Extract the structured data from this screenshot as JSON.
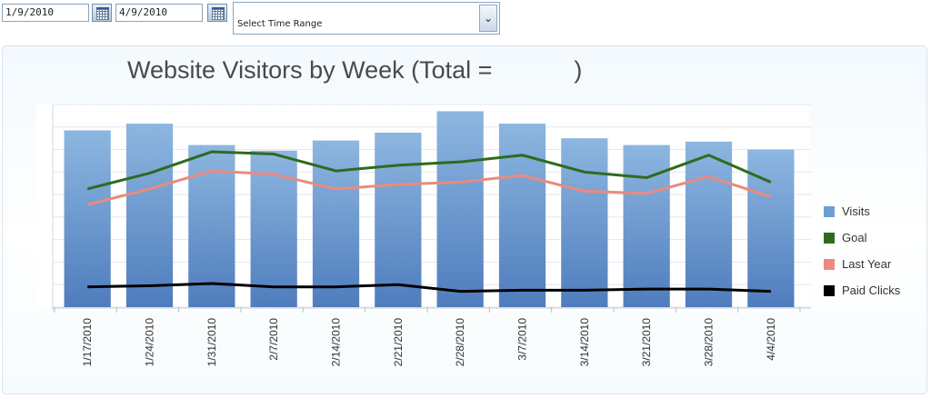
{
  "toolbar": {
    "start_date": "1/9/2010",
    "end_date": "4/9/2010",
    "time_range": {
      "selected": "Select Time Range"
    }
  },
  "chart_data": {
    "type": "bar",
    "title": "Website Visitors by Week (Total =            )",
    "categories": [
      "1/17/2010",
      "1/24/2010",
      "1/31/2010",
      "2/7/2010",
      "2/14/2010",
      "2/21/2010",
      "2/28/2010",
      "3/7/2010",
      "3/14/2010",
      "3/21/2010",
      "3/28/2010",
      "4/4/2010"
    ],
    "series": [
      {
        "name": "Visits",
        "kind": "bar",
        "color": "#6f9fd2",
        "values": [
          78.5,
          81.5,
          72,
          69.5,
          74,
          77.5,
          87,
          81.5,
          75,
          72,
          73.5,
          70
        ]
      },
      {
        "name": "Goal",
        "kind": "line",
        "color": "#2e6b1e",
        "values": [
          52.5,
          59.5,
          69,
          68,
          60.5,
          63,
          64.5,
          67.5,
          60,
          57.5,
          67.5,
          55.5
        ]
      },
      {
        "name": "Last Year",
        "kind": "line",
        "color": "#e98b7e",
        "values": [
          45.5,
          52.5,
          60.5,
          59,
          52.5,
          54.5,
          55.5,
          58.5,
          51.5,
          50.5,
          58,
          49
        ]
      },
      {
        "name": "Paid Clicks",
        "kind": "line",
        "color": "#000000",
        "values": [
          9,
          9.5,
          10.5,
          9,
          9,
          10,
          7,
          7.5,
          7.5,
          8,
          8,
          7
        ]
      }
    ],
    "ylim": [
      0,
      90
    ],
    "grid": true,
    "legend_position": "right"
  }
}
